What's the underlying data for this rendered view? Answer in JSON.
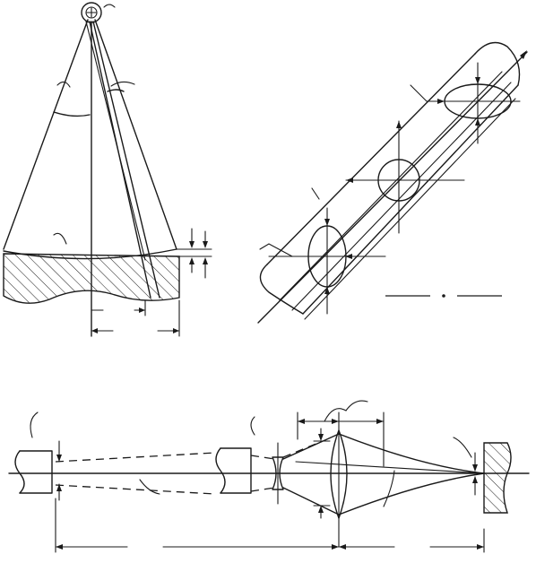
{
  "figure": {
    "panels": [
      {
        "id": "a",
        "description_role": "cone-of-rays-onto-surface"
      },
      {
        "id": "b",
        "description_role": "tilted-beam-cross-sections"
      },
      {
        "id": "c",
        "description_role": "optical-focusing-system"
      }
    ],
    "line_color": "#1a1a1a",
    "background_color": "#ffffff"
  }
}
